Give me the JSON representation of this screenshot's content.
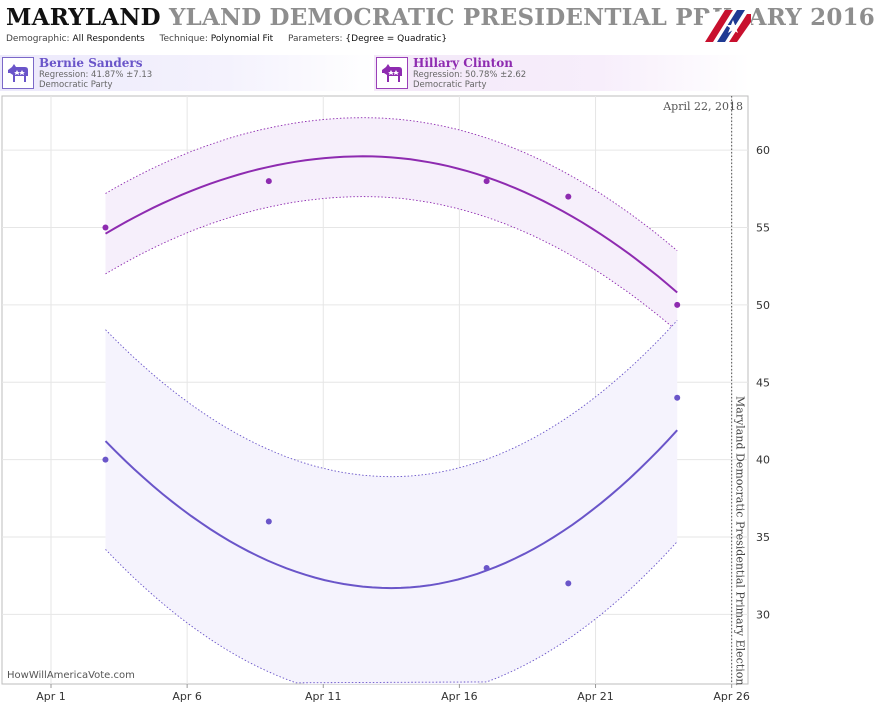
{
  "header": {
    "title_state": "MARYLAND",
    "title_rest": "YLAND DEMOCRATIC PRESIDENTIAL PRIMARY 2016",
    "params": [
      {
        "key": "Demographic:",
        "value": "All Respondents"
      },
      {
        "key": "Technique:",
        "value": "Polynomial Fit"
      },
      {
        "key": "Parameters:",
        "value": "{Degree = Quadratic}"
      }
    ]
  },
  "candidates": [
    {
      "name": "Bernie Sanders",
      "regression": "Regression: 41.87% ±7.13",
      "party": "Democratic Party",
      "icon": "donkey-icon",
      "color": "#6a55c9"
    },
    {
      "name": "Hillary Clinton",
      "regression": "Regression: 50.78% ±2.62",
      "party": "Democratic Party",
      "icon": "donkey-icon",
      "color": "#8e2bb0"
    }
  ],
  "chart_data": {
    "type": "scatter",
    "date_label": "April 22, 2018",
    "event_label": "Maryland Democratic Presidential Primary Election",
    "event_x": "Apr 26",
    "watermark": "HowWillAmericaVote.com",
    "x_ticks": [
      "Apr 1",
      "Apr 6",
      "Apr 11",
      "Apr 16",
      "Apr 21",
      "Apr 26"
    ],
    "y_ticks": [
      30,
      35,
      40,
      45,
      50,
      55,
      60
    ],
    "ylim": [
      25.5,
      63.5
    ],
    "xlim_days": [
      -0.8,
      26.6
    ],
    "grid": true,
    "series": [
      {
        "name": "Hillary Clinton",
        "color": "#8e2bb0",
        "band_color": "#f6effb",
        "points": [
          {
            "x": "Apr 3",
            "y": 55
          },
          {
            "x": "Apr 9",
            "y": 58
          },
          {
            "x": "Apr 17",
            "y": 58
          },
          {
            "x": "Apr 20",
            "y": 57
          },
          {
            "x": "Apr 24",
            "y": 50
          }
        ],
        "fit": {
          "start": "Apr 3",
          "end": "Apr 24",
          "start_y": 54.6,
          "peak_x": "Apr 12.5",
          "peak_y": 59.6,
          "end_y": 50.8
        },
        "band_upper": {
          "start_y": 57.2,
          "peak_y": 62.1,
          "end_y": 53.5
        },
        "band_lower": {
          "start_y": 52.0,
          "peak_y": 57.0,
          "end_y": 48.3
        }
      },
      {
        "name": "Bernie Sanders",
        "color": "#6a55c9",
        "band_color": "#f5f3fd",
        "points": [
          {
            "x": "Apr 3",
            "y": 40
          },
          {
            "x": "Apr 9",
            "y": 36
          },
          {
            "x": "Apr 17",
            "y": 33
          },
          {
            "x": "Apr 20",
            "y": 32
          },
          {
            "x": "Apr 24",
            "y": 44
          }
        ],
        "fit": {
          "start": "Apr 3",
          "end": "Apr 24",
          "start_y": 41.2,
          "trough_x": "Apr 13.5",
          "trough_y": 31.7,
          "end_y": 41.9
        },
        "band_upper": {
          "start_y": 48.4,
          "trough_y": 38.9,
          "end_y": 49.0
        },
        "band_lower": {
          "start_y": 34.2,
          "trough_y": 24.5,
          "end_y": 34.7
        }
      }
    ]
  }
}
